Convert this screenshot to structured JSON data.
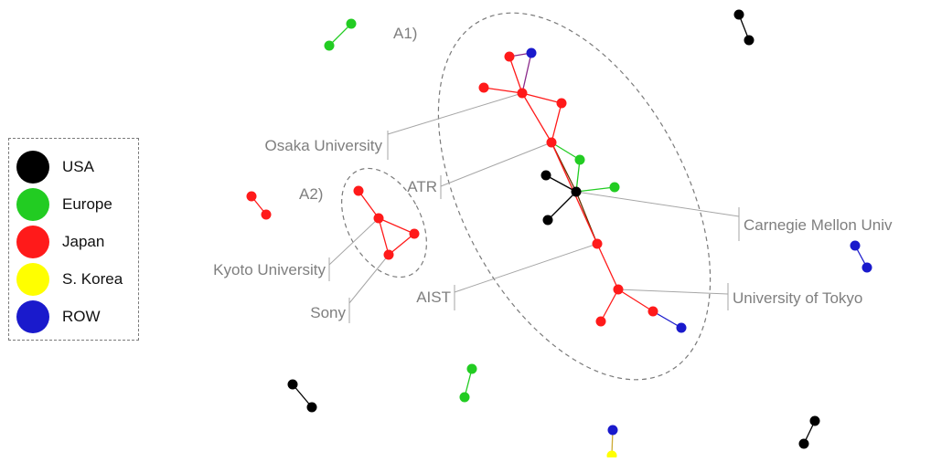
{
  "legend": {
    "items": [
      {
        "label": "USA",
        "color": "#000000"
      },
      {
        "label": "Europe",
        "color": "#22cc22"
      },
      {
        "label": "Japan",
        "color": "#ff1a1a"
      },
      {
        "label": "S. Korea",
        "color": "#ffff00"
      },
      {
        "label": "ROW",
        "color": "#1a1acc"
      }
    ]
  },
  "clusters": {
    "a1": "A1)",
    "a2": "A2)"
  },
  "callouts": {
    "osaka": "Osaka University",
    "atr": "ATR",
    "kyoto": "Kyoto University",
    "sony": "Sony",
    "aist": "AIST",
    "cmu": "Carnegie Mellon Univ",
    "tokyo": "University of Tokyo"
  },
  "colors": {
    "usa": "#000000",
    "europe": "#22cc22",
    "japan": "#ff1a1a",
    "korea": "#ffff00",
    "row": "#1a1acc",
    "callout_text": "#7f7f7f",
    "callout_line": "#a6a6a6",
    "cluster_outline": "#7a7a7a"
  }
}
